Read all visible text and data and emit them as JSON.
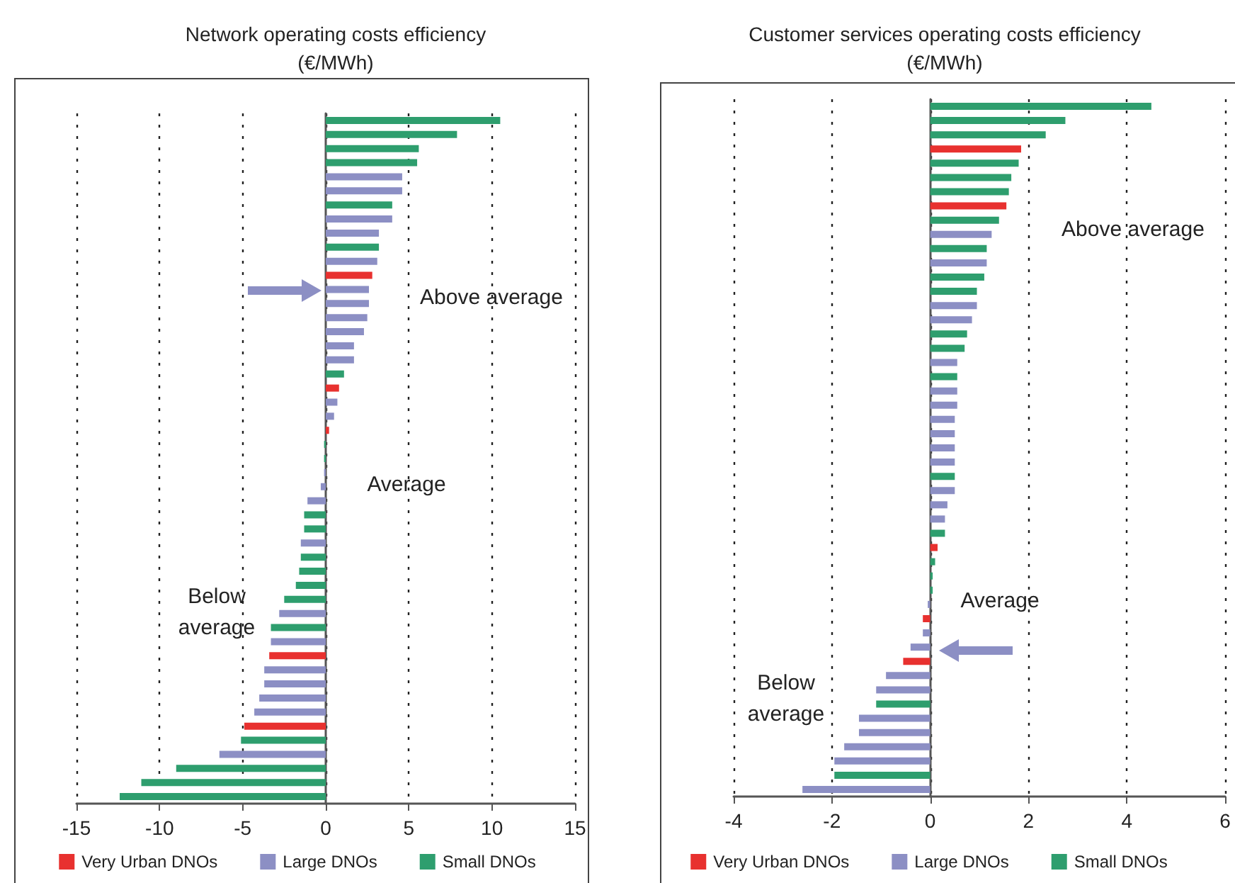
{
  "chart_data": [
    {
      "type": "bar",
      "orientation": "horizontal",
      "title": "Network operating costs efficiency",
      "subtitle": "(€/MWh)",
      "categories": [
        null,
        null,
        null,
        null,
        null,
        null,
        null,
        null,
        null,
        null,
        null,
        null,
        null,
        null,
        null,
        null,
        null,
        null,
        null,
        null,
        null,
        null,
        null,
        null,
        null,
        null,
        null,
        null,
        null,
        null,
        null,
        null,
        null,
        null,
        null,
        null,
        null,
        null,
        null,
        null,
        null,
        null,
        null,
        null,
        null,
        null,
        null,
        null,
        null
      ],
      "series": [
        {
          "name": "Very Urban DNOs",
          "color": "#e8312f",
          "values": [
            null,
            null,
            null,
            null,
            null,
            null,
            null,
            null,
            null,
            null,
            null,
            2.8,
            null,
            null,
            null,
            null,
            null,
            null,
            null,
            0.8,
            null,
            null,
            0.2,
            null,
            null,
            null,
            null,
            null,
            null,
            null,
            null,
            null,
            null,
            null,
            null,
            null,
            null,
            null,
            -3.4,
            null,
            null,
            null,
            null,
            -4.9,
            null,
            null,
            null,
            null,
            null
          ]
        },
        {
          "name": "Large DNOs",
          "color": "#8c8fc4",
          "values": [
            null,
            null,
            null,
            null,
            4.6,
            4.6,
            null,
            4.0,
            3.2,
            null,
            3.1,
            null,
            2.6,
            2.6,
            2.5,
            2.3,
            1.7,
            1.7,
            null,
            null,
            0.7,
            0.5,
            null,
            null,
            null,
            -0.1,
            -0.3,
            -1.1,
            null,
            null,
            -1.5,
            null,
            null,
            null,
            null,
            -2.8,
            null,
            -3.3,
            null,
            -3.7,
            -3.7,
            -4.0,
            -4.3,
            null,
            null,
            -6.4,
            null,
            null,
            null
          ]
        },
        {
          "name": "Small DNOs",
          "color": "#2e9e6e",
          "values": [
            10.5,
            7.9,
            5.6,
            5.5,
            null,
            null,
            4.0,
            null,
            null,
            3.2,
            null,
            null,
            null,
            null,
            null,
            null,
            null,
            null,
            1.1,
            null,
            null,
            null,
            null,
            -0.1,
            -0.1,
            null,
            null,
            null,
            -1.3,
            -1.3,
            null,
            -1.5,
            -1.6,
            -1.8,
            -2.5,
            null,
            -3.3,
            null,
            null,
            null,
            null,
            null,
            null,
            null,
            -5.1,
            null,
            -9.0,
            -11.1,
            -12.4
          ]
        }
      ],
      "xlim": [
        -15,
        15
      ],
      "xticks": [
        -15,
        -10,
        -5,
        0,
        5,
        10,
        15
      ],
      "grid": "x",
      "legend": "bottom",
      "annotations": [
        "Above average",
        "Average",
        "Below\naverage"
      ]
    },
    {
      "type": "bar",
      "orientation": "horizontal",
      "title": "Customer services operating costs efficiency",
      "subtitle": "(€/MWh)",
      "categories": [
        null,
        null,
        null,
        null,
        null,
        null,
        null,
        null,
        null,
        null,
        null,
        null,
        null,
        null,
        null,
        null,
        null,
        null,
        null,
        null,
        null,
        null,
        null,
        null,
        null,
        null,
        null,
        null,
        null,
        null,
        null,
        null,
        null,
        null,
        null,
        null,
        null,
        null,
        null,
        null,
        null,
        null,
        null,
        null,
        null,
        null,
        null,
        null,
        null
      ],
      "series": [
        {
          "name": "Very Urban DNOs",
          "color": "#e8312f",
          "values": [
            null,
            null,
            null,
            1.85,
            null,
            null,
            null,
            1.55,
            null,
            null,
            null,
            null,
            null,
            null,
            null,
            null,
            null,
            null,
            null,
            null,
            null,
            null,
            null,
            null,
            null,
            null,
            null,
            null,
            null,
            null,
            null,
            0.15,
            null,
            null,
            null,
            null,
            -0.15,
            null,
            null,
            -0.55,
            null,
            null,
            null,
            null,
            null,
            null,
            null,
            null,
            null
          ]
        },
        {
          "name": "Large DNOs",
          "color": "#8c8fc4",
          "values": [
            null,
            null,
            null,
            null,
            null,
            null,
            null,
            null,
            null,
            1.25,
            null,
            1.15,
            null,
            null,
            0.95,
            0.85,
            null,
            null,
            0.55,
            null,
            0.55,
            0.55,
            0.5,
            0.5,
            0.5,
            0.5,
            null,
            0.5,
            0.35,
            0.3,
            null,
            null,
            null,
            null,
            null,
            -0.05,
            null,
            -0.15,
            -0.4,
            null,
            -0.9,
            -1.1,
            null,
            -1.45,
            -1.45,
            -1.75,
            -1.95,
            null,
            -2.6
          ]
        },
        {
          "name": "Small DNOs",
          "color": "#2e9e6e",
          "values": [
            4.5,
            2.75,
            2.35,
            null,
            1.8,
            1.65,
            1.6,
            null,
            1.4,
            null,
            1.15,
            null,
            1.1,
            0.95,
            null,
            null,
            0.75,
            0.7,
            null,
            0.55,
            null,
            null,
            null,
            null,
            null,
            null,
            0.5,
            null,
            null,
            null,
            0.3,
            null,
            0.1,
            0.05,
            0.05,
            null,
            null,
            null,
            null,
            null,
            null,
            null,
            -1.1,
            null,
            null,
            null,
            null,
            -1.95,
            null
          ]
        }
      ],
      "xlim": [
        -4,
        6
      ],
      "xticks": [
        -4,
        -2,
        0,
        2,
        4,
        6
      ],
      "grid": "x",
      "legend": "bottom",
      "annotations": [
        "Above average",
        "Average",
        "Below\naverage"
      ]
    }
  ]
}
